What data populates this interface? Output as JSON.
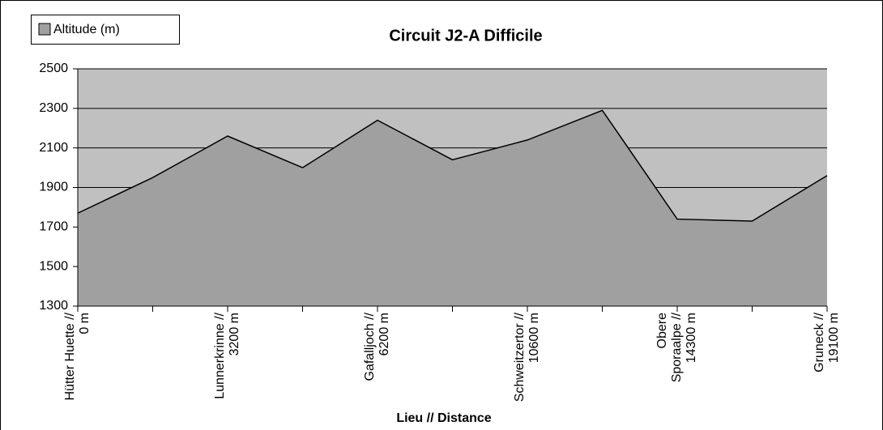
{
  "chart_data": {
    "type": "area",
    "title": "Circuit  J2-A  Difficile",
    "x_label": "Lieu // Distance",
    "categories": [
      "Hütter Huette // 0 m",
      null,
      "Lunnerkrinne // 3200 m",
      null,
      "Gafalljoch // 6200 m",
      null,
      "Schweitzertor // 10600 m",
      null,
      "Obere Sporaalpe // 14300 m",
      null,
      "Gruneck // 19100 m"
    ],
    "series": [
      {
        "name": "Altitude (m)",
        "color": "#a0a0a0",
        "values": [
          1770,
          1950,
          2160,
          2000,
          2240,
          2040,
          2140,
          2290,
          1740,
          1730,
          1960
        ]
      }
    ],
    "ylim": [
      1300,
      2500
    ],
    "yticks": [
      1300,
      1500,
      1700,
      1900,
      2100,
      2300,
      2500
    ],
    "grid": true,
    "legend": "top-left"
  }
}
